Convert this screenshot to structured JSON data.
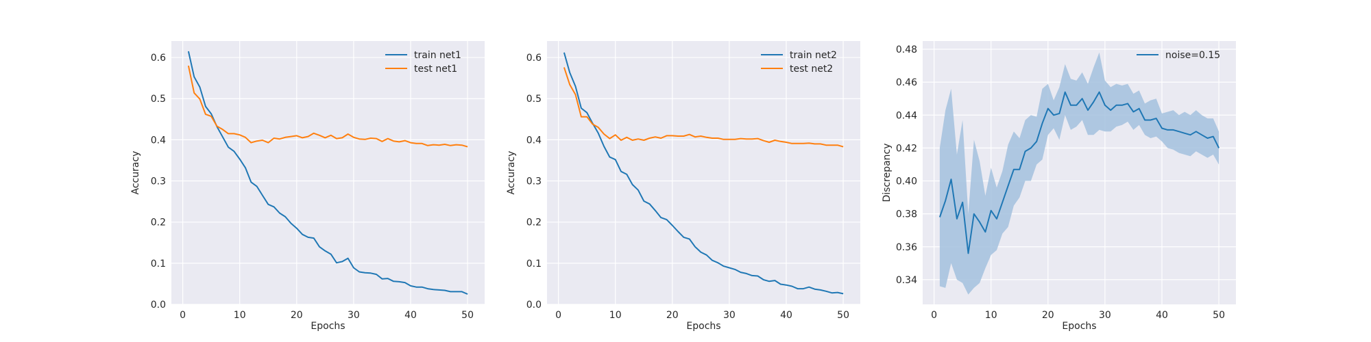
{
  "colors": {
    "train": "#1f77b4",
    "test": "#ff7f0e",
    "band": "#a3c1de",
    "panel_bg": "#eaeaf2",
    "grid": "#ffffff"
  },
  "chart_data": [
    {
      "type": "line",
      "xlabel": "Epochs",
      "ylabel": "Accuracy",
      "xlim": [
        -2,
        53
      ],
      "ylim": [
        0.0,
        0.64
      ],
      "xticks": [
        0,
        10,
        20,
        30,
        40,
        50
      ],
      "yticks": [
        0.0,
        0.1,
        0.2,
        0.3,
        0.4,
        0.5,
        0.6
      ],
      "ytick_labels": [
        "0.0",
        "0.1",
        "0.2",
        "0.3",
        "0.4",
        "0.5",
        "0.6"
      ],
      "grid": true,
      "legend_position": "top-right",
      "x": [
        1,
        2,
        3,
        4,
        5,
        6,
        7,
        8,
        9,
        10,
        11,
        12,
        13,
        14,
        15,
        16,
        17,
        18,
        19,
        20,
        21,
        22,
        23,
        24,
        25,
        26,
        27,
        28,
        29,
        30,
        31,
        32,
        33,
        34,
        35,
        36,
        37,
        38,
        39,
        40,
        41,
        42,
        43,
        44,
        45,
        46,
        47,
        48,
        49,
        50
      ],
      "series": [
        {
          "name": "train net1",
          "color": "#1f77b4",
          "values": [
            0.615,
            0.553,
            0.528,
            0.481,
            0.463,
            0.432,
            0.407,
            0.382,
            0.372,
            0.353,
            0.332,
            0.297,
            0.287,
            0.265,
            0.243,
            0.237,
            0.222,
            0.213,
            0.197,
            0.185,
            0.17,
            0.163,
            0.161,
            0.14,
            0.13,
            0.122,
            0.101,
            0.104,
            0.112,
            0.089,
            0.079,
            0.077,
            0.076,
            0.073,
            0.062,
            0.063,
            0.056,
            0.055,
            0.053,
            0.045,
            0.042,
            0.042,
            0.038,
            0.036,
            0.035,
            0.034,
            0.031,
            0.031,
            0.031,
            0.025
          ]
        },
        {
          "name": "test net1",
          "color": "#ff7f0e",
          "values": [
            0.58,
            0.514,
            0.499,
            0.462,
            0.457,
            0.433,
            0.425,
            0.415,
            0.415,
            0.412,
            0.406,
            0.393,
            0.397,
            0.399,
            0.393,
            0.404,
            0.402,
            0.406,
            0.408,
            0.41,
            0.405,
            0.408,
            0.416,
            0.411,
            0.405,
            0.411,
            0.403,
            0.405,
            0.414,
            0.406,
            0.402,
            0.401,
            0.404,
            0.403,
            0.396,
            0.403,
            0.397,
            0.395,
            0.398,
            0.393,
            0.391,
            0.391,
            0.386,
            0.388,
            0.387,
            0.389,
            0.386,
            0.388,
            0.387,
            0.383
          ]
        }
      ]
    },
    {
      "type": "line",
      "xlabel": "Epochs",
      "ylabel": "Accuracy",
      "xlim": [
        -2,
        53
      ],
      "ylim": [
        0.0,
        0.64
      ],
      "xticks": [
        0,
        10,
        20,
        30,
        40,
        50
      ],
      "yticks": [
        0.0,
        0.1,
        0.2,
        0.3,
        0.4,
        0.5,
        0.6
      ],
      "ytick_labels": [
        "0.0",
        "0.1",
        "0.2",
        "0.3",
        "0.4",
        "0.5",
        "0.6"
      ],
      "grid": true,
      "legend_position": "top-right",
      "x": [
        1,
        2,
        3,
        4,
        5,
        6,
        7,
        8,
        9,
        10,
        11,
        12,
        13,
        14,
        15,
        16,
        17,
        18,
        19,
        20,
        21,
        22,
        23,
        24,
        25,
        26,
        27,
        28,
        29,
        30,
        31,
        32,
        33,
        34,
        35,
        36,
        37,
        38,
        39,
        40,
        41,
        42,
        43,
        44,
        45,
        46,
        47,
        48,
        49,
        50
      ],
      "series": [
        {
          "name": "train net2",
          "color": "#1f77b4",
          "values": [
            0.612,
            0.563,
            0.53,
            0.477,
            0.466,
            0.44,
            0.416,
            0.384,
            0.358,
            0.352,
            0.323,
            0.316,
            0.291,
            0.278,
            0.251,
            0.244,
            0.228,
            0.211,
            0.206,
            0.192,
            0.177,
            0.163,
            0.159,
            0.14,
            0.127,
            0.12,
            0.107,
            0.101,
            0.093,
            0.089,
            0.085,
            0.078,
            0.075,
            0.07,
            0.069,
            0.06,
            0.056,
            0.058,
            0.049,
            0.047,
            0.044,
            0.038,
            0.038,
            0.042,
            0.037,
            0.035,
            0.032,
            0.028,
            0.029,
            0.026
          ]
        },
        {
          "name": "test net2",
          "color": "#ff7f0e",
          "values": [
            0.576,
            0.534,
            0.51,
            0.456,
            0.456,
            0.438,
            0.43,
            0.414,
            0.403,
            0.412,
            0.399,
            0.406,
            0.399,
            0.402,
            0.399,
            0.404,
            0.407,
            0.404,
            0.41,
            0.41,
            0.409,
            0.409,
            0.413,
            0.407,
            0.409,
            0.406,
            0.404,
            0.404,
            0.401,
            0.401,
            0.401,
            0.403,
            0.402,
            0.402,
            0.403,
            0.398,
            0.394,
            0.399,
            0.396,
            0.394,
            0.391,
            0.391,
            0.391,
            0.392,
            0.39,
            0.39,
            0.387,
            0.387,
            0.387,
            0.383
          ]
        }
      ]
    },
    {
      "type": "line",
      "xlabel": "Epochs",
      "ylabel": "Discrepancy",
      "xlim": [
        -2,
        53
      ],
      "ylim": [
        0.325,
        0.485
      ],
      "xticks": [
        0,
        10,
        20,
        30,
        40,
        50
      ],
      "yticks": [
        0.34,
        0.36,
        0.38,
        0.4,
        0.42,
        0.44,
        0.46,
        0.48
      ],
      "ytick_labels": [
        "0.34",
        "0.36",
        "0.38",
        "0.40",
        "0.42",
        "0.44",
        "0.46",
        "0.48"
      ],
      "grid": true,
      "legend_position": "top-right",
      "x": [
        1,
        2,
        3,
        4,
        5,
        6,
        7,
        8,
        9,
        10,
        11,
        12,
        13,
        14,
        15,
        16,
        17,
        18,
        19,
        20,
        21,
        22,
        23,
        24,
        25,
        26,
        27,
        28,
        29,
        30,
        31,
        32,
        33,
        34,
        35,
        36,
        37,
        38,
        39,
        40,
        41,
        42,
        43,
        44,
        45,
        46,
        47,
        48,
        49,
        50
      ],
      "series": [
        {
          "name": "noise=0.15",
          "color": "#1f77b4",
          "values": [
            0.378,
            0.388,
            0.401,
            0.377,
            0.387,
            0.356,
            0.38,
            0.375,
            0.369,
            0.382,
            0.377,
            0.387,
            0.397,
            0.407,
            0.407,
            0.418,
            0.42,
            0.424,
            0.435,
            0.444,
            0.44,
            0.441,
            0.454,
            0.446,
            0.446,
            0.45,
            0.443,
            0.448,
            0.454,
            0.446,
            0.443,
            0.446,
            0.446,
            0.447,
            0.442,
            0.444,
            0.437,
            0.437,
            0.438,
            0.432,
            0.431,
            0.431,
            0.43,
            0.429,
            0.428,
            0.43,
            0.428,
            0.426,
            0.427,
            0.42
          ],
          "lower": [
            0.336,
            0.335,
            0.35,
            0.34,
            0.338,
            0.331,
            0.335,
            0.338,
            0.347,
            0.355,
            0.358,
            0.368,
            0.372,
            0.385,
            0.39,
            0.4,
            0.4,
            0.41,
            0.413,
            0.428,
            0.432,
            0.425,
            0.44,
            0.431,
            0.433,
            0.437,
            0.428,
            0.428,
            0.431,
            0.43,
            0.43,
            0.433,
            0.434,
            0.436,
            0.431,
            0.434,
            0.428,
            0.426,
            0.427,
            0.424,
            0.42,
            0.419,
            0.417,
            0.416,
            0.415,
            0.418,
            0.416,
            0.414,
            0.416,
            0.41
          ],
          "upper": [
            0.42,
            0.443,
            0.456,
            0.416,
            0.437,
            0.38,
            0.425,
            0.412,
            0.391,
            0.408,
            0.396,
            0.406,
            0.422,
            0.43,
            0.426,
            0.437,
            0.44,
            0.439,
            0.456,
            0.459,
            0.449,
            0.457,
            0.471,
            0.462,
            0.461,
            0.466,
            0.459,
            0.469,
            0.478,
            0.461,
            0.457,
            0.459,
            0.458,
            0.459,
            0.453,
            0.455,
            0.447,
            0.449,
            0.45,
            0.441,
            0.442,
            0.443,
            0.44,
            0.442,
            0.44,
            0.443,
            0.44,
            0.438,
            0.438,
            0.43
          ]
        }
      ]
    }
  ]
}
